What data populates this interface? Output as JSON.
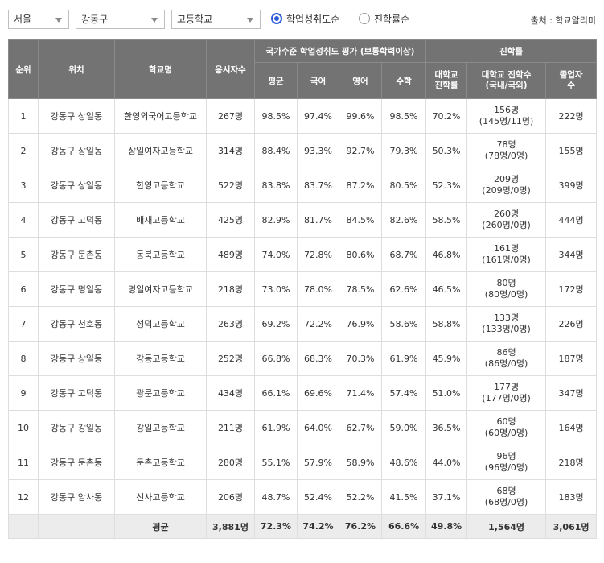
{
  "filters": {
    "region": "서울",
    "district": "강동구",
    "school_level": "고등학교",
    "sort_options": [
      {
        "label": "학업성취도순",
        "selected": true
      },
      {
        "label": "진학률순",
        "selected": false
      }
    ],
    "source": "출처 : 학교알리미"
  },
  "colors": {
    "header_bg": "#737373",
    "accent": "#2b5bd7",
    "footer_bg": "#ececec"
  },
  "table": {
    "headers": {
      "rank": "순위",
      "location": "위치",
      "school": "학교명",
      "examinees": "응시자수",
      "achievement_group": "국가수준 학업성취도 평가 (보통학력이상)",
      "avg": "평균",
      "korean": "국어",
      "english": "영어",
      "math": "수학",
      "advancement_group": "진학률",
      "univ_rate": "대학교\n진학률",
      "univ_count": "대학교 진학수\n(국내/국외)",
      "graduates": "졸업자\n수"
    },
    "rows": [
      {
        "rank": "1",
        "location": "강동구 상일동",
        "school": "한영외국어고등학교",
        "examinees": "267명",
        "avg": "98.5%",
        "korean": "97.4%",
        "english": "99.6%",
        "math": "98.5%",
        "univ_rate": "70.2%",
        "univ_count": "156명",
        "univ_split": "(145명/11명)",
        "graduates": "222명"
      },
      {
        "rank": "2",
        "location": "강동구 상일동",
        "school": "상일여자고등학교",
        "examinees": "314명",
        "avg": "88.4%",
        "korean": "93.3%",
        "english": "92.7%",
        "math": "79.3%",
        "univ_rate": "50.3%",
        "univ_count": "78명",
        "univ_split": "(78명/0명)",
        "graduates": "155명"
      },
      {
        "rank": "3",
        "location": "강동구 상일동",
        "school": "한영고등학교",
        "examinees": "522명",
        "avg": "83.8%",
        "korean": "83.7%",
        "english": "87.2%",
        "math": "80.5%",
        "univ_rate": "52.3%",
        "univ_count": "209명",
        "univ_split": "(209명/0명)",
        "graduates": "399명"
      },
      {
        "rank": "4",
        "location": "강동구 고덕동",
        "school": "배재고등학교",
        "examinees": "425명",
        "avg": "82.9%",
        "korean": "81.7%",
        "english": "84.5%",
        "math": "82.6%",
        "univ_rate": "58.5%",
        "univ_count": "260명",
        "univ_split": "(260명/0명)",
        "graduates": "444명"
      },
      {
        "rank": "5",
        "location": "강동구 둔촌동",
        "school": "동북고등학교",
        "examinees": "489명",
        "avg": "74.0%",
        "korean": "72.8%",
        "english": "80.6%",
        "math": "68.7%",
        "univ_rate": "46.8%",
        "univ_count": "161명",
        "univ_split": "(161명/0명)",
        "graduates": "344명"
      },
      {
        "rank": "6",
        "location": "강동구 명일동",
        "school": "명일여자고등학교",
        "examinees": "218명",
        "avg": "73.0%",
        "korean": "78.0%",
        "english": "78.5%",
        "math": "62.6%",
        "univ_rate": "46.5%",
        "univ_count": "80명",
        "univ_split": "(80명/0명)",
        "graduates": "172명"
      },
      {
        "rank": "7",
        "location": "강동구 천호동",
        "school": "성덕고등학교",
        "examinees": "263명",
        "avg": "69.2%",
        "korean": "72.2%",
        "english": "76.9%",
        "math": "58.6%",
        "univ_rate": "58.8%",
        "univ_count": "133명",
        "univ_split": "(133명/0명)",
        "graduates": "226명"
      },
      {
        "rank": "8",
        "location": "강동구 상일동",
        "school": "강동고등학교",
        "examinees": "252명",
        "avg": "66.8%",
        "korean": "68.3%",
        "english": "70.3%",
        "math": "61.9%",
        "univ_rate": "45.9%",
        "univ_count": "86명",
        "univ_split": "(86명/0명)",
        "graduates": "187명"
      },
      {
        "rank": "9",
        "location": "강동구 고덕동",
        "school": "광문고등학교",
        "examinees": "434명",
        "avg": "66.1%",
        "korean": "69.6%",
        "english": "71.4%",
        "math": "57.4%",
        "univ_rate": "51.0%",
        "univ_count": "177명",
        "univ_split": "(177명/0명)",
        "graduates": "347명"
      },
      {
        "rank": "10",
        "location": "강동구 강일동",
        "school": "강일고등학교",
        "examinees": "211명",
        "avg": "61.9%",
        "korean": "64.0%",
        "english": "62.7%",
        "math": "59.0%",
        "univ_rate": "36.5%",
        "univ_count": "60명",
        "univ_split": "(60명/0명)",
        "graduates": "164명"
      },
      {
        "rank": "11",
        "location": "강동구 둔촌동",
        "school": "둔촌고등학교",
        "examinees": "280명",
        "avg": "55.1%",
        "korean": "57.9%",
        "english": "58.9%",
        "math": "48.6%",
        "univ_rate": "44.0%",
        "univ_count": "96명",
        "univ_split": "(96명/0명)",
        "graduates": "218명"
      },
      {
        "rank": "12",
        "location": "강동구 암사동",
        "school": "선사고등학교",
        "examinees": "206명",
        "avg": "48.7%",
        "korean": "52.4%",
        "english": "52.2%",
        "math": "41.5%",
        "univ_rate": "37.1%",
        "univ_count": "68명",
        "univ_split": "(68명/0명)",
        "graduates": "183명"
      }
    ],
    "footer": {
      "label": "평균",
      "examinees": "3,881명",
      "avg": "72.3%",
      "korean": "74.2%",
      "english": "76.2%",
      "math": "66.6%",
      "univ_rate": "49.8%",
      "univ_count": "1,564명",
      "graduates": "3,061명"
    }
  }
}
